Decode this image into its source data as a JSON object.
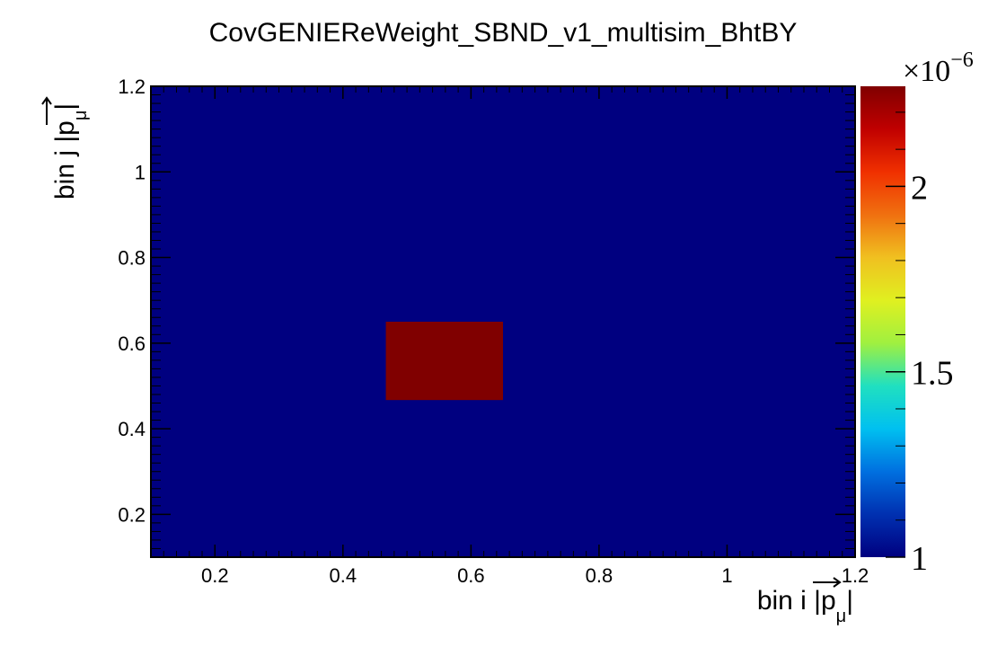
{
  "chart_data": {
    "type": "heatmap",
    "title": "CovGENIEReWeight_SBND_v1_multisim_BhtBY",
    "xlabel": {
      "main": "bin i |",
      "var": "p",
      "sub": "μ",
      "end": "|"
    },
    "ylabel": {
      "main": "bin j |",
      "var": "p",
      "sub": "μ",
      "end": "|"
    },
    "xlim": [
      0.1,
      1.2
    ],
    "ylim": [
      0.1,
      1.2
    ],
    "x_ticks": [
      "0.2",
      "0.4",
      "0.6",
      "0.8",
      "1",
      "1.2"
    ],
    "y_ticks": [
      "0.2",
      "0.4",
      "0.6",
      "0.8",
      "1",
      "1.2"
    ],
    "colorbar": {
      "min": 1.0,
      "max": 2.27,
      "ticks": [
        "1",
        "1.5",
        "2"
      ],
      "exponent_label": "×10",
      "exponent": "−6",
      "palette": [
        "#000080",
        "#0030b0",
        "#0070e0",
        "#00c0f0",
        "#20e0c0",
        "#a0f040",
        "#e0f020",
        "#f0c020",
        "#f07010",
        "#f03000",
        "#c00000",
        "#800000"
      ]
    },
    "background_value": 1.0,
    "cells": [
      {
        "x0": 0.467,
        "x1": 0.65,
        "y0": 0.467,
        "y1": 0.65,
        "value": 2.27
      }
    ]
  }
}
